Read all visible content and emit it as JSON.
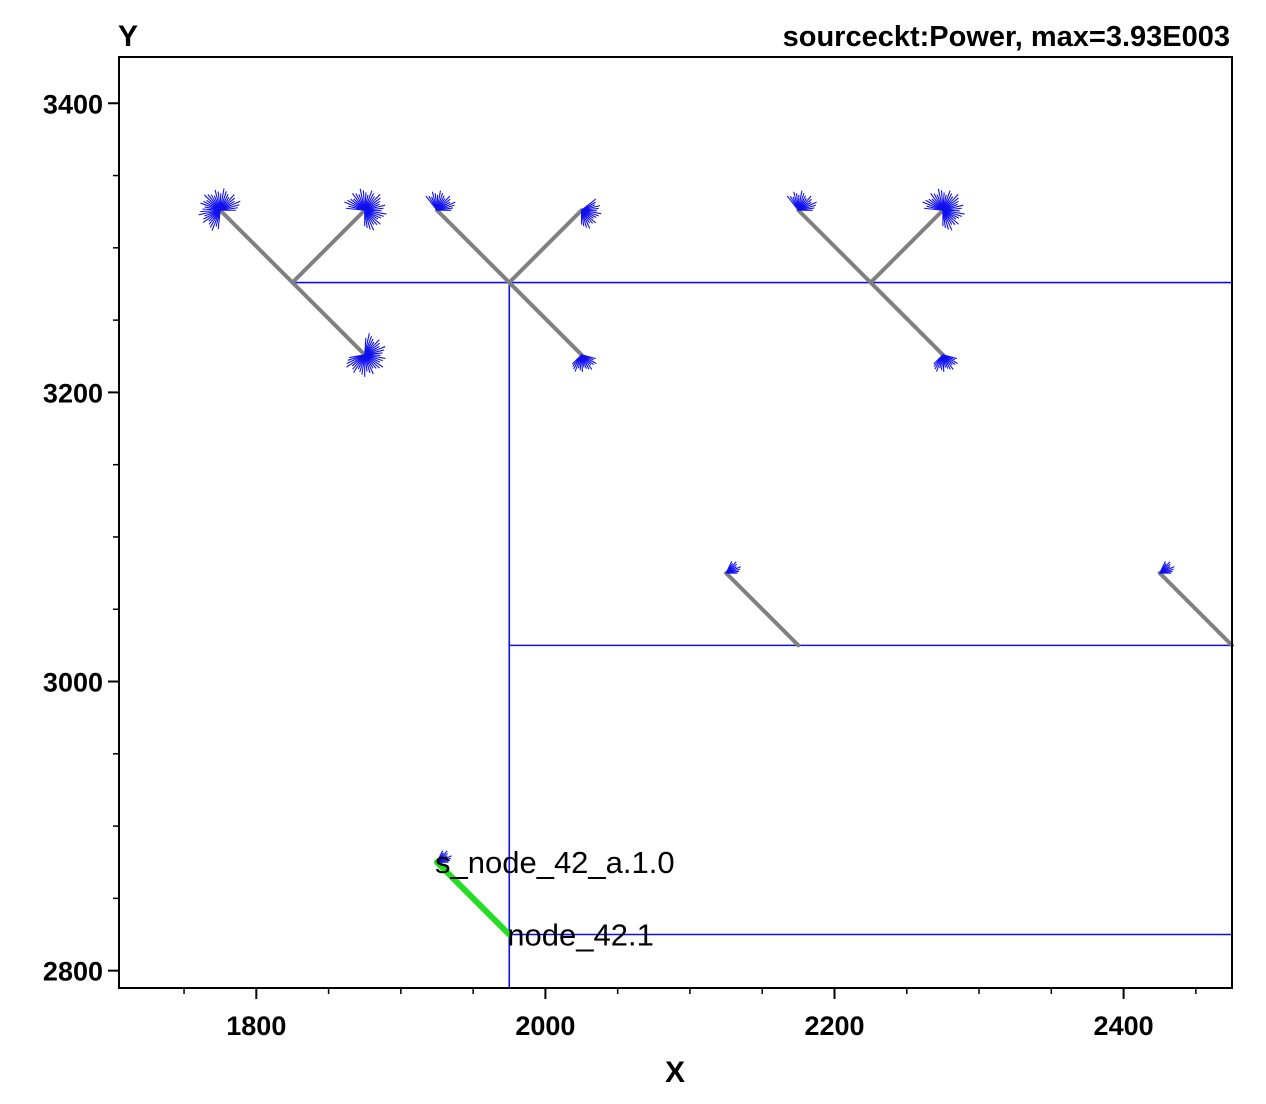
{
  "chart_data": {
    "type": "scatter",
    "title": "sourceckt:Power, max=3.93E003",
    "xlabel": "X",
    "ylabel": "Y",
    "xlim": [
      1705,
      2475
    ],
    "ylim": [
      2788,
      3432
    ],
    "x_ticks": [
      1800,
      2000,
      2200,
      2400
    ],
    "y_ticks": [
      2800,
      3000,
      3200,
      3400
    ],
    "x_ticks_minor_step": 50,
    "y_ticks_minor_step": 50,
    "colors": {
      "wire": "#1010ee",
      "branch": "#808080",
      "highlight": "#22dd22",
      "axes": "#000000"
    },
    "wires": [
      {
        "from": [
          1825,
          3276
        ],
        "to": [
          2475,
          3276
        ]
      },
      {
        "from": [
          1975,
          3276
        ],
        "to": [
          1975,
          2788
        ]
      },
      {
        "from": [
          1975,
          3025
        ],
        "to": [
          2475,
          3025
        ]
      },
      {
        "from": [
          1975,
          2825
        ],
        "to": [
          2475,
          2825
        ]
      }
    ],
    "branches": [
      {
        "from": [
          1825,
          3276
        ],
        "to": [
          1775,
          3326
        ]
      },
      {
        "from": [
          1825,
          3276
        ],
        "to": [
          1875,
          3326
        ]
      },
      {
        "from": [
          1825,
          3276
        ],
        "to": [
          1875,
          3226
        ]
      },
      {
        "from": [
          1975,
          3276
        ],
        "to": [
          1925,
          3326
        ]
      },
      {
        "from": [
          1975,
          3276
        ],
        "to": [
          2025,
          3326
        ]
      },
      {
        "from": [
          1975,
          3276
        ],
        "to": [
          2025,
          3226
        ]
      },
      {
        "from": [
          2225,
          3276
        ],
        "to": [
          2175,
          3326
        ]
      },
      {
        "from": [
          2225,
          3276
        ],
        "to": [
          2275,
          3326
        ]
      },
      {
        "from": [
          2225,
          3276
        ],
        "to": [
          2275,
          3226
        ]
      },
      {
        "from": [
          2175,
          3025
        ],
        "to": [
          2125,
          3075
        ]
      },
      {
        "from": [
          2475,
          3025
        ],
        "to": [
          2425,
          3075
        ]
      }
    ],
    "highlighted_branch": {
      "from": [
        1975,
        2825
      ],
      "to": [
        1925,
        2875
      ]
    },
    "loads": [
      {
        "x": 1775,
        "y": 3326,
        "start_deg": 0,
        "end_deg": 270,
        "r": 22
      },
      {
        "x": 1875,
        "y": 3326,
        "start_deg": -90,
        "end_deg": 180,
        "r": 22
      },
      {
        "x": 1875,
        "y": 3226,
        "start_deg": -170,
        "end_deg": 90,
        "r": 22
      },
      {
        "x": 1925,
        "y": 3326,
        "start_deg": 0,
        "end_deg": 135,
        "r": 20
      },
      {
        "x": 2025,
        "y": 3326,
        "start_deg": -90,
        "end_deg": 45,
        "r": 20
      },
      {
        "x": 2025,
        "y": 3226,
        "start_deg": -135,
        "end_deg": -10,
        "r": 18
      },
      {
        "x": 2175,
        "y": 3326,
        "start_deg": 0,
        "end_deg": 135,
        "r": 20
      },
      {
        "x": 2275,
        "y": 3326,
        "start_deg": -90,
        "end_deg": 180,
        "r": 22
      },
      {
        "x": 2275,
        "y": 3226,
        "start_deg": -135,
        "end_deg": -10,
        "r": 18
      },
      {
        "x": 2125,
        "y": 3075,
        "start_deg": 0,
        "end_deg": 70,
        "r": 16
      },
      {
        "x": 2425,
        "y": 3075,
        "start_deg": 0,
        "end_deg": 70,
        "r": 16
      },
      {
        "x": 1925,
        "y": 2875,
        "start_deg": 0,
        "end_deg": 70,
        "r": 16
      }
    ],
    "annotations": [
      {
        "text": "s_node_42_a.1.0",
        "x": 1925,
        "y": 2875
      },
      {
        "text": "node_42.1",
        "x": 1975,
        "y": 2825
      }
    ]
  }
}
